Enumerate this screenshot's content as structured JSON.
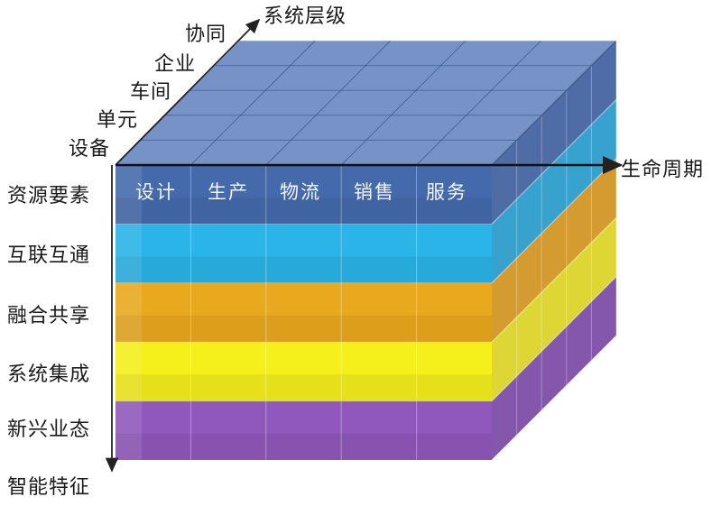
{
  "axes": {
    "vertical": {
      "title": "智能特征"
    },
    "horizontal": {
      "title": "生命周期"
    },
    "depth": {
      "title": "系统层级"
    }
  },
  "layers": [
    {
      "label": "资源要素",
      "color": "#3a62a8",
      "top_color": "#6f8cc4",
      "side_color": "#2f5296"
    },
    {
      "label": "互联互通",
      "color": "#1fb0e6",
      "top_color": "#52c4ec",
      "side_color": "#1592c6"
    },
    {
      "label": "融合共享",
      "color": "#e8a412",
      "top_color": "#f0bb4a",
      "side_color": "#cc8a0c"
    },
    {
      "label": "系统集成",
      "color": "#f4ee10",
      "top_color": "#f8f25a",
      "side_color": "#d8cf10"
    },
    {
      "label": "新兴业态",
      "color": "#8a4fb8",
      "top_color": "#a77acd",
      "side_color": "#6e3a9e"
    }
  ],
  "columns": [
    {
      "label": "设计"
    },
    {
      "label": "生产"
    },
    {
      "label": "物流"
    },
    {
      "label": "销售"
    },
    {
      "label": "服务"
    }
  ],
  "depth_levels": [
    {
      "label": "设备"
    },
    {
      "label": "单元"
    },
    {
      "label": "车间"
    },
    {
      "label": "企业"
    },
    {
      "label": "协同"
    }
  ]
}
